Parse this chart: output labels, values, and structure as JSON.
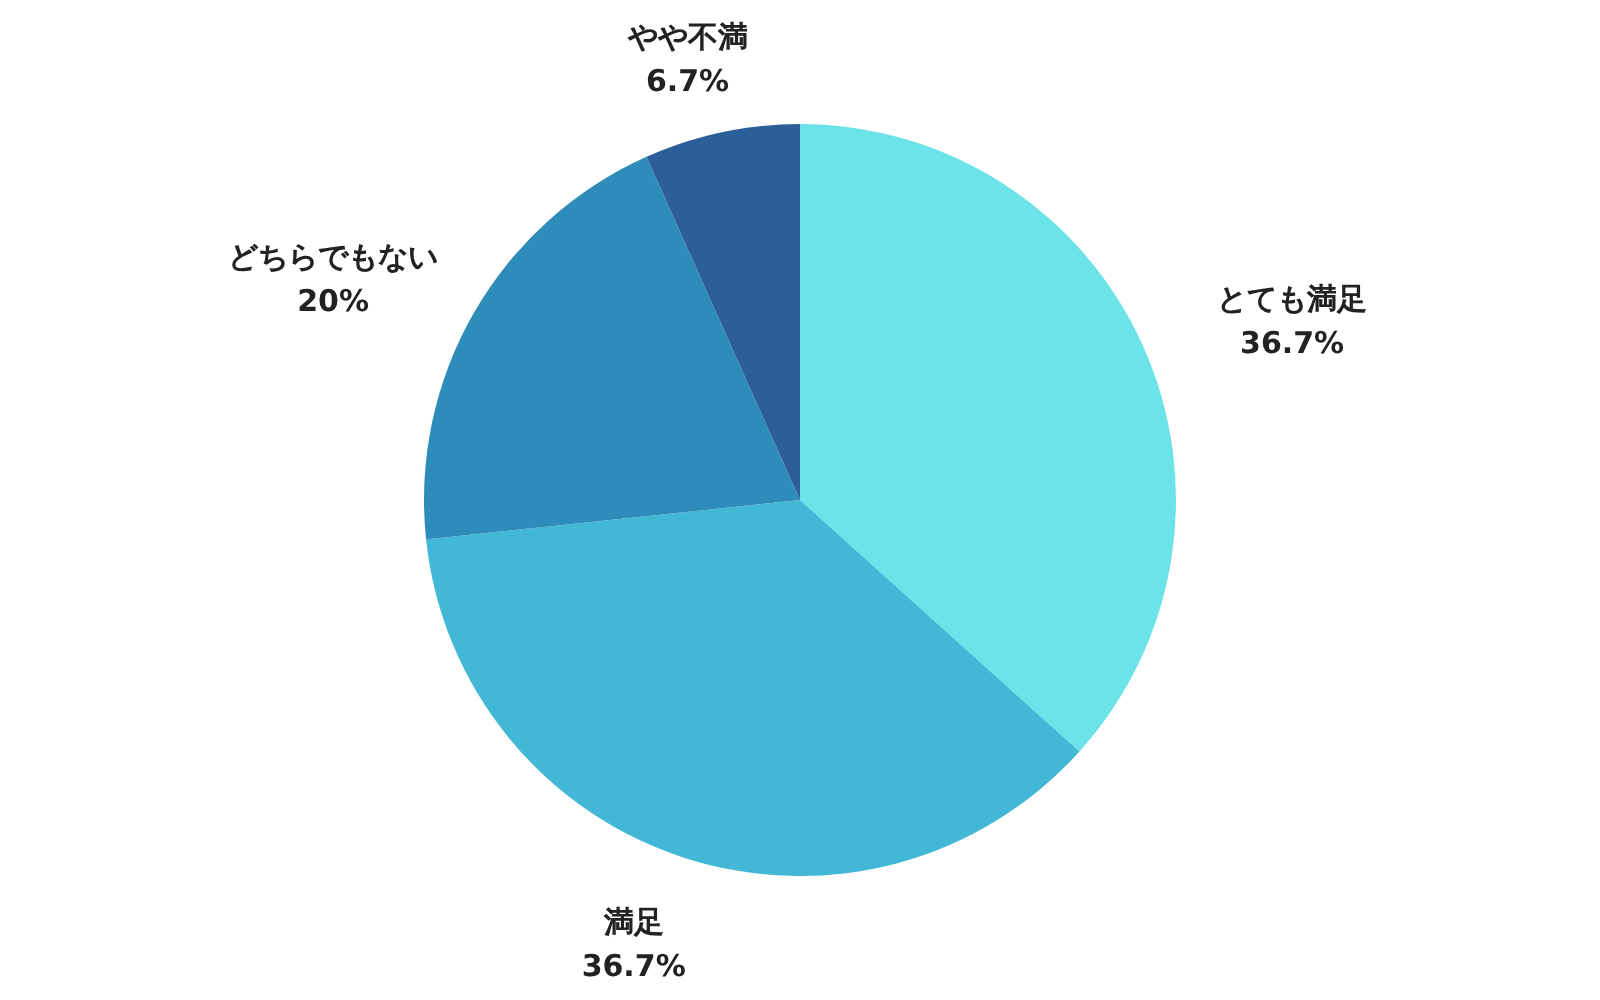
{
  "chart_data": {
    "type": "pie",
    "categories": [
      "とても満足",
      "満足",
      "どちらでもない",
      "やや不満"
    ],
    "values": [
      36.7,
      36.7,
      20,
      6.7
    ],
    "value_labels": [
      "36.7%",
      "36.7%",
      "20%",
      "6.7%"
    ],
    "colors": [
      "#6be3e8",
      "#42b8d6",
      "#2e8cbb",
      "#2c5f99"
    ],
    "legend": false
  }
}
